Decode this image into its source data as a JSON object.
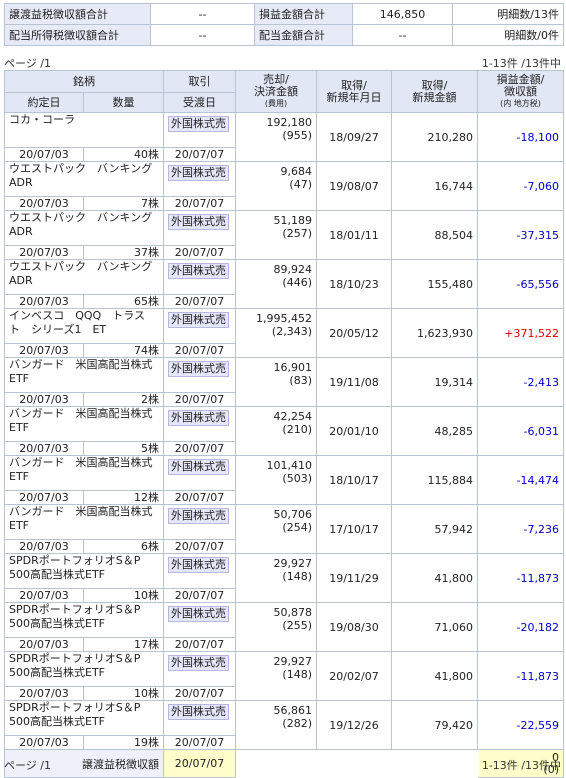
{
  "summary": {
    "rows": [
      {
        "label1": "譲渡益税徴収額合計",
        "value1": "--",
        "label2": "損益金額合計",
        "value2": "146,850",
        "detail": "明細数/13件"
      },
      {
        "label1": "配当所得税徴収額合計",
        "value1": "--",
        "label2": "配当金額合計",
        "value2": "--",
        "detail": "明細数/0件"
      }
    ]
  },
  "pager": {
    "page_label": "ページ /1",
    "count_label": "1-13件 /13件中"
  },
  "headers": {
    "name": "銘柄",
    "trade": "取引",
    "sell": "売却/",
    "sell2": "決済金額",
    "sell3": "(費用)",
    "acq_date": "取得/",
    "acq_date2": "新規年月日",
    "acq_amount": "取得/",
    "acq_amount2": "新規金額",
    "pl": "損益金額/",
    "pl2": "徴収額",
    "pl3": "(内 地方税)",
    "contract_date": "約定日",
    "quantity": "数量",
    "settle_date": "受渡日"
  },
  "rows": [
    {
      "name1": "コカ・コーラ",
      "name2": "",
      "contract_date": "20/07/03",
      "quantity": "40株",
      "trade": "外国株式売",
      "settle_date": "20/07/07",
      "amount": "192,180",
      "fee": "(955)",
      "acq_date": "18/09/27",
      "acq_amount": "210,280",
      "pl": "-18,100"
    },
    {
      "name1": "ウエストパック　バンキング",
      "name2": "ADR",
      "contract_date": "20/07/03",
      "quantity": "7株",
      "trade": "外国株式売",
      "settle_date": "20/07/07",
      "amount": "9,684",
      "fee": "(47)",
      "acq_date": "19/08/07",
      "acq_amount": "16,744",
      "pl": "-7,060"
    },
    {
      "name1": "ウエストパック　バンキング",
      "name2": "ADR",
      "contract_date": "20/07/03",
      "quantity": "37株",
      "trade": "外国株式売",
      "settle_date": "20/07/07",
      "amount": "51,189",
      "fee": "(257)",
      "acq_date": "18/01/11",
      "acq_amount": "88,504",
      "pl": "-37,315"
    },
    {
      "name1": "ウエストパック　バンキング",
      "name2": "ADR",
      "contract_date": "20/07/03",
      "quantity": "65株",
      "trade": "外国株式売",
      "settle_date": "20/07/07",
      "amount": "89,924",
      "fee": "(446)",
      "acq_date": "18/10/23",
      "acq_amount": "155,480",
      "pl": "-65,556"
    },
    {
      "name1": "インベスコ　QQQ　トラス",
      "name2": "ト　シリーズ1　ET",
      "contract_date": "20/07/03",
      "quantity": "74株",
      "trade": "外国株式売",
      "settle_date": "20/07/07",
      "amount": "1,995,452",
      "fee": "(2,343)",
      "acq_date": "20/05/12",
      "acq_amount": "1,623,930",
      "pl": "+371,522"
    },
    {
      "name1": "バンガード　米国高配当株式",
      "name2": "ETF",
      "contract_date": "20/07/03",
      "quantity": "2株",
      "trade": "外国株式売",
      "settle_date": "20/07/07",
      "amount": "16,901",
      "fee": "(83)",
      "acq_date": "19/11/08",
      "acq_amount": "19,314",
      "pl": "-2,413"
    },
    {
      "name1": "バンガード　米国高配当株式",
      "name2": "ETF",
      "contract_date": "20/07/03",
      "quantity": "5株",
      "trade": "外国株式売",
      "settle_date": "20/07/07",
      "amount": "42,254",
      "fee": "(210)",
      "acq_date": "20/01/10",
      "acq_amount": "48,285",
      "pl": "-6,031"
    },
    {
      "name1": "バンガード　米国高配当株式",
      "name2": "ETF",
      "contract_date": "20/07/03",
      "quantity": "12株",
      "trade": "外国株式売",
      "settle_date": "20/07/07",
      "amount": "101,410",
      "fee": "(503)",
      "acq_date": "18/10/17",
      "acq_amount": "115,884",
      "pl": "-14,474"
    },
    {
      "name1": "バンガード　米国高配当株式",
      "name2": "ETF",
      "contract_date": "20/07/03",
      "quantity": "6株",
      "trade": "外国株式売",
      "settle_date": "20/07/07",
      "amount": "50,706",
      "fee": "(254)",
      "acq_date": "17/10/17",
      "acq_amount": "57,942",
      "pl": "-7,236"
    },
    {
      "name1": "SPDRポートフォリオS＆P",
      "name2": "500高配当株式ETF",
      "contract_date": "20/07/03",
      "quantity": "10株",
      "trade": "外国株式売",
      "settle_date": "20/07/07",
      "amount": "29,927",
      "fee": "(148)",
      "acq_date": "19/11/29",
      "acq_amount": "41,800",
      "pl": "-11,873"
    },
    {
      "name1": "SPDRポートフォリオS＆P",
      "name2": "500高配当株式ETF",
      "contract_date": "20/07/03",
      "quantity": "17株",
      "trade": "外国株式売",
      "settle_date": "20/07/07",
      "amount": "50,878",
      "fee": "(255)",
      "acq_date": "19/08/30",
      "acq_amount": "71,060",
      "pl": "-20,182"
    },
    {
      "name1": "SPDRポートフォリオS＆P",
      "name2": "500高配当株式ETF",
      "contract_date": "20/07/03",
      "quantity": "10株",
      "trade": "外国株式売",
      "settle_date": "20/07/07",
      "amount": "29,927",
      "fee": "(148)",
      "acq_date": "20/02/07",
      "acq_amount": "41,800",
      "pl": "-11,873"
    },
    {
      "name1": "SPDRポートフォリオS＆P",
      "name2": "500高配当株式ETF",
      "contract_date": "20/07/03",
      "quantity": "19株",
      "trade": "外国株式売",
      "settle_date": "20/07/07",
      "amount": "56,861",
      "fee": "(282)",
      "acq_date": "19/12/26",
      "acq_amount": "79,420",
      "pl": "-22,559"
    }
  ],
  "footer": {
    "label": "譲渡益税徴収額",
    "date": "20/07/07",
    "value": "0",
    "value_sub": "(0)"
  },
  "colors": {
    "negative": "#0000cc",
    "positive": "#dd0000",
    "header_bg": "#e1e7f4",
    "highlight": "#ffffcc"
  }
}
